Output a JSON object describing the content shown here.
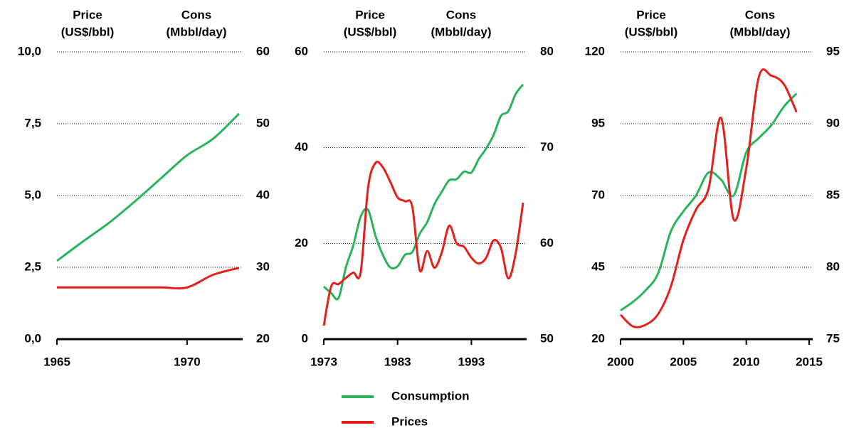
{
  "chart_data": [
    {
      "type": "line",
      "ylabel": [
        "Price",
        "(US$/bbl)"
      ],
      "y2label": [
        "Cons",
        "(Mbbl/day)"
      ],
      "x": [
        1965,
        1966,
        1967,
        1968,
        1969,
        1970,
        1971,
        1972
      ],
      "xlim": [
        1965,
        1972
      ],
      "xticks": [
        1965,
        1970
      ],
      "ylim": [
        0,
        10
      ],
      "yticks": [
        {
          "value": 0,
          "label": "0,0"
        },
        {
          "value": 2.5,
          "label": "2,5"
        },
        {
          "value": 5,
          "label": "5,0"
        },
        {
          "value": 7.5,
          "label": "7,5"
        },
        {
          "value": 10,
          "label": "10,0"
        }
      ],
      "y2lim": [
        20,
        60
      ],
      "y2ticks": [
        20,
        30,
        40,
        50,
        60
      ],
      "grid": true,
      "series": [
        {
          "name": "Consumption",
          "color": "#2bb35c",
          "axis": "y2",
          "values": [
            30.9,
            33.6,
            36.2,
            39.2,
            42.4,
            45.6,
            47.9,
            51.4
          ]
        },
        {
          "name": "Prices",
          "color": "#e3211c",
          "axis": "y",
          "values": [
            1.8,
            1.8,
            1.8,
            1.8,
            1.8,
            1.8,
            2.24,
            2.48
          ]
        }
      ]
    },
    {
      "type": "line",
      "ylabel": [
        "Price",
        "(US$/bbl)"
      ],
      "y2label": [
        "Cons",
        "(Mbbl/day)"
      ],
      "x": [
        1973,
        1974,
        1975,
        1976,
        1977,
        1978,
        1979,
        1980,
        1981,
        1982,
        1983,
        1984,
        1985,
        1986,
        1987,
        1988,
        1989,
        1990,
        1991,
        1992,
        1993,
        1994,
        1995,
        1996,
        1997,
        1998,
        1999,
        2000
      ],
      "xlim": [
        1973,
        2000
      ],
      "xticks": [
        1973,
        1983,
        1993
      ],
      "ylim": [
        0,
        60
      ],
      "yticks": [
        0,
        20,
        40,
        60
      ],
      "y2lim": [
        50,
        80
      ],
      "y2ticks": [
        50,
        60,
        70,
        80
      ],
      "grid": true,
      "series": [
        {
          "name": "Consumption",
          "color": "#2bb35c",
          "axis": "y2",
          "values": [
            55.5,
            54.8,
            54.3,
            57.5,
            59.8,
            62.8,
            63.5,
            60.8,
            58.8,
            57.5,
            57.6,
            58.8,
            59.1,
            61.0,
            62.2,
            64.1,
            65.4,
            66.6,
            66.7,
            67.5,
            67.4,
            68.8,
            69.9,
            71.3,
            73.3,
            73.8,
            75.6,
            76.6
          ]
        },
        {
          "name": "Prices",
          "color": "#e3211c",
          "axis": "y",
          "values": [
            2.8,
            11.0,
            11.5,
            12.8,
            13.9,
            14.0,
            31.6,
            36.8,
            35.9,
            32.9,
            29.6,
            28.8,
            27.6,
            14.4,
            18.4,
            14.9,
            18.2,
            23.7,
            20.0,
            19.3,
            17.0,
            15.8,
            17.0,
            20.6,
            19.1,
            12.7,
            17.9,
            28.5
          ]
        }
      ]
    },
    {
      "type": "line",
      "ylabel": [
        "Price",
        "(US$/bbl)"
      ],
      "y2label": [
        "Cons",
        "(Mbbl/day)"
      ],
      "x": [
        2000,
        2001,
        2002,
        2003,
        2004,
        2005,
        2006,
        2007,
        2008,
        2009,
        2010,
        2011,
        2012,
        2013,
        2014
      ],
      "xlim": [
        2000,
        2015
      ],
      "xticks": [
        2000,
        2005,
        2010,
        2015
      ],
      "ylim": [
        20,
        120
      ],
      "yticks": [
        20,
        45,
        70,
        95,
        120
      ],
      "y2lim": [
        75,
        95
      ],
      "y2ticks": [
        75,
        80,
        85,
        90,
        95
      ],
      "grid": true,
      "series": [
        {
          "name": "Consumption",
          "color": "#2bb35c",
          "axis": "y2",
          "values": [
            77.0,
            77.6,
            78.4,
            79.6,
            82.5,
            83.9,
            85.0,
            86.6,
            86.1,
            85.0,
            88.0,
            89.0,
            89.9,
            91.2,
            92.1
          ]
        },
        {
          "name": "Prices",
          "color": "#e3211c",
          "axis": "y",
          "values": [
            28.5,
            24.4,
            25.0,
            28.8,
            38.3,
            54.5,
            65.1,
            72.4,
            97.0,
            61.7,
            79.5,
            111.3,
            111.7,
            108.7,
            99.0
          ]
        }
      ]
    }
  ]
}
